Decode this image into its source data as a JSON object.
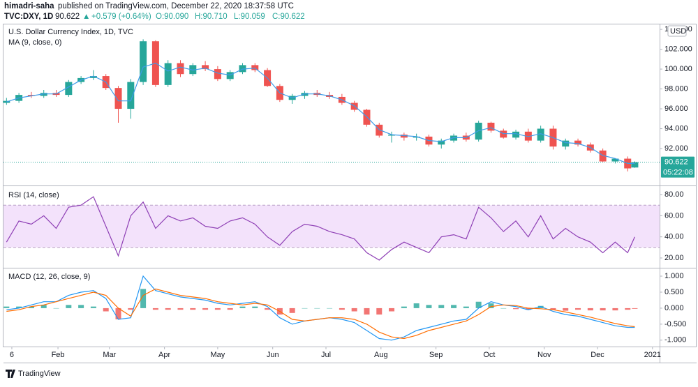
{
  "header": {
    "author": "himadri-saha",
    "published": "published on TradingView.com, December 22, 2020 18:37:58 UTC",
    "symbol": "TVC:DXY, 1D",
    "price": "90.622",
    "change": "+0.579 (+0.64%)",
    "ohlc": [
      "O:90.090",
      "H:90.710",
      "L:90.059",
      "C:90.622"
    ]
  },
  "footer": {
    "brand": "TradingView"
  },
  "chart_data": [
    {
      "type": "candlestick",
      "title": "U.S. Dollar Currency Index, 1D, TVC",
      "currency": "USD",
      "x": [
        2,
        9,
        16,
        23,
        30,
        37,
        44,
        51,
        58,
        65,
        72,
        79,
        86,
        93,
        100,
        107,
        114,
        121,
        128,
        135,
        142,
        149,
        156,
        163,
        170,
        177,
        184,
        191,
        198,
        205,
        212,
        219,
        226,
        233,
        240,
        247,
        254,
        261,
        268,
        275,
        282,
        289,
        296,
        303,
        310,
        317,
        324,
        331,
        338,
        345,
        352,
        356
      ],
      "open": [
        96.6,
        96.8,
        97.4,
        97.3,
        97.6,
        97.4,
        98.7,
        99.1,
        99.3,
        98.1,
        96.0,
        98.7,
        102.8,
        98.4,
        100.6,
        99.5,
        100.4,
        100.0,
        99.0,
        99.7,
        100.4,
        99.9,
        98.3,
        96.9,
        97.3,
        97.6,
        97.4,
        97.2,
        96.6,
        95.9,
        94.4,
        93.3,
        93.4,
        93.1,
        93.2,
        92.4,
        92.8,
        93.3,
        92.9,
        94.6,
        93.8,
        93.1,
        93.7,
        92.8,
        94.0,
        92.2,
        92.8,
        92.4,
        91.8,
        90.7,
        90.98,
        90.09
      ],
      "high": [
        97.1,
        97.6,
        97.7,
        97.9,
        97.9,
        98.9,
        99.3,
        99.9,
        99.5,
        98.3,
        99.0,
        103.0,
        102.9,
        100.9,
        100.9,
        100.6,
        100.8,
        100.3,
        99.9,
        100.6,
        100.6,
        100.1,
        98.5,
        97.5,
        97.8,
        97.9,
        97.7,
        97.5,
        96.8,
        96.0,
        94.6,
        93.7,
        93.6,
        93.5,
        93.4,
        93.0,
        93.5,
        93.6,
        94.8,
        94.7,
        94.0,
        93.9,
        94.0,
        94.3,
        94.3,
        93.0,
        93.0,
        92.6,
        92.0,
        91.0,
        91.2,
        90.71
      ],
      "low": [
        96.4,
        96.6,
        97.1,
        97.1,
        97.2,
        97.2,
        98.5,
        98.9,
        97.9,
        94.6,
        95.0,
        98.4,
        98.2,
        98.2,
        99.2,
        99.3,
        99.8,
        98.8,
        98.8,
        99.5,
        99.7,
        98.2,
        96.7,
        96.5,
        97.0,
        97.2,
        97.0,
        96.4,
        95.7,
        94.2,
        93.1,
        92.6,
        92.8,
        92.8,
        92.2,
        92.0,
        92.6,
        92.7,
        92.7,
        93.6,
        93.0,
        92.9,
        92.6,
        92.6,
        91.9,
        91.9,
        92.2,
        91.6,
        90.6,
        90.5,
        89.7,
        90.059
      ],
      "close": [
        96.8,
        97.4,
        97.3,
        97.6,
        97.4,
        98.7,
        99.1,
        99.3,
        98.1,
        96.0,
        98.7,
        102.8,
        98.4,
        100.6,
        99.5,
        100.4,
        100.0,
        99.0,
        99.7,
        100.4,
        99.9,
        98.3,
        96.9,
        97.3,
        97.6,
        97.4,
        97.2,
        96.6,
        95.9,
        94.4,
        93.3,
        93.4,
        93.1,
        93.2,
        92.4,
        92.8,
        93.3,
        92.9,
        94.6,
        93.8,
        93.1,
        93.7,
        92.8,
        94.0,
        92.2,
        92.8,
        92.4,
        91.8,
        90.7,
        90.98,
        90.0,
        90.622
      ],
      "up_color": "#26a69a",
      "down_color": "#ef5350",
      "ma": {
        "name": "MA (9, close, 0)",
        "color": "#3d9be9",
        "values": [
          96.7,
          97.1,
          97.3,
          97.5,
          97.5,
          98.2,
          98.9,
          99.3,
          98.7,
          96.8,
          96.8,
          100.2,
          100.6,
          99.8,
          100.2,
          99.9,
          100.1,
          99.6,
          99.4,
          100.0,
          100.1,
          99.1,
          97.6,
          97.1,
          97.5,
          97.5,
          97.3,
          96.9,
          96.3,
          95.2,
          93.9,
          93.4,
          93.3,
          93.2,
          92.8,
          92.7,
          93.1,
          93.1,
          93.8,
          94.1,
          93.5,
          93.5,
          93.2,
          93.5,
          93.1,
          92.6,
          92.5,
          92.1,
          91.3,
          91.0,
          90.5,
          90.5
        ]
      },
      "last_price": 90.622,
      "countdown": "05:22:08",
      "xlim": [
        0.3,
        370
      ],
      "ylim": [
        88.35,
        104.5
      ],
      "yticks": [
        {
          "value": 92,
          "label": "92.000"
        },
        {
          "value": 94,
          "label": "94.000"
        },
        {
          "value": 96,
          "label": "96.000"
        },
        {
          "value": 98,
          "label": "98.000"
        },
        {
          "value": 100,
          "label": "100.000"
        },
        {
          "value": 102,
          "label": "102.000"
        },
        {
          "value": 104,
          "label": "104.000"
        }
      ]
    },
    {
      "type": "line",
      "title": "RSI (14, close)",
      "x": [
        2,
        9,
        16,
        23,
        30,
        37,
        44,
        51,
        58,
        65,
        72,
        79,
        86,
        93,
        100,
        107,
        114,
        121,
        128,
        135,
        142,
        149,
        156,
        163,
        170,
        177,
        184,
        191,
        198,
        205,
        212,
        219,
        226,
        233,
        240,
        247,
        254,
        261,
        268,
        275,
        282,
        289,
        296,
        303,
        310,
        317,
        324,
        331,
        338,
        345,
        352,
        356
      ],
      "series": [
        {
          "color": "#8e3fb5",
          "values": [
            35,
            55,
            52,
            60,
            48,
            68,
            70,
            78,
            50,
            22,
            60,
            73,
            48,
            60,
            55,
            58,
            50,
            48,
            55,
            58,
            52,
            40,
            32,
            45,
            52,
            50,
            45,
            42,
            38,
            25,
            18,
            28,
            35,
            30,
            25,
            40,
            42,
            38,
            68,
            58,
            45,
            55,
            40,
            60,
            38,
            48,
            40,
            35,
            25,
            35,
            25,
            40
          ]
        }
      ],
      "band": [
        30,
        70
      ],
      "band_color": "#f3e2fb",
      "xlim": [
        0.3,
        370
      ],
      "ylim": [
        11.4,
        87.3
      ],
      "yticks": [
        {
          "value": 20,
          "label": "20.00"
        },
        {
          "value": 40,
          "label": "40.00"
        },
        {
          "value": 60,
          "label": "60.00"
        },
        {
          "value": 80,
          "label": "80.00"
        }
      ]
    },
    {
      "type": "macd",
      "title": "MACD (12, 26, close, 9)",
      "x": [
        2,
        9,
        16,
        23,
        30,
        37,
        44,
        51,
        58,
        65,
        72,
        79,
        86,
        93,
        100,
        107,
        114,
        121,
        128,
        135,
        142,
        149,
        156,
        163,
        170,
        177,
        184,
        191,
        198,
        205,
        212,
        219,
        226,
        233,
        240,
        247,
        254,
        261,
        268,
        275,
        282,
        289,
        296,
        303,
        310,
        317,
        324,
        331,
        338,
        345,
        352,
        356
      ],
      "macd": {
        "color": "#2196f3",
        "values": [
          -0.05,
          0.0,
          0.1,
          0.2,
          0.2,
          0.4,
          0.5,
          0.55,
          0.3,
          -0.35,
          -0.3,
          1.0,
          0.55,
          0.45,
          0.35,
          0.3,
          0.25,
          0.15,
          0.1,
          0.15,
          0.2,
          0.05,
          -0.3,
          -0.5,
          -0.4,
          -0.35,
          -0.3,
          -0.35,
          -0.45,
          -0.7,
          -0.95,
          -1.0,
          -0.9,
          -0.7,
          -0.6,
          -0.5,
          -0.4,
          -0.35,
          0.0,
          0.2,
          0.1,
          0.05,
          -0.05,
          0.05,
          -0.1,
          -0.2,
          -0.25,
          -0.35,
          -0.45,
          -0.55,
          -0.6,
          -0.6
        ]
      },
      "signal": {
        "color": "#ff6d00",
        "values": [
          -0.1,
          -0.05,
          0.05,
          0.1,
          0.2,
          0.3,
          0.4,
          0.5,
          0.4,
          0.0,
          -0.25,
          0.4,
          0.6,
          0.5,
          0.4,
          0.35,
          0.3,
          0.2,
          0.15,
          0.1,
          0.15,
          0.1,
          -0.1,
          -0.35,
          -0.4,
          -0.35,
          -0.3,
          -0.3,
          -0.35,
          -0.5,
          -0.75,
          -0.9,
          -0.95,
          -0.85,
          -0.7,
          -0.6,
          -0.5,
          -0.4,
          -0.2,
          0.05,
          0.1,
          0.08,
          0.0,
          -0.02,
          -0.05,
          -0.12,
          -0.2,
          -0.28,
          -0.38,
          -0.48,
          -0.55,
          -0.58
        ]
      },
      "histogram": {
        "up_color": "#26a69a",
        "down_color": "#ef5350",
        "values": [
          0.05,
          0.05,
          0.05,
          0.1,
          0,
          0.1,
          0.1,
          0.05,
          -0.1,
          -0.35,
          -0.05,
          0.6,
          -0.05,
          -0.05,
          -0.05,
          -0.05,
          -0.05,
          -0.05,
          -0.05,
          0.05,
          0.05,
          -0.05,
          -0.2,
          -0.15,
          0,
          0,
          0,
          -0.05,
          -0.1,
          -0.2,
          -0.2,
          -0.1,
          0.05,
          0.15,
          0.1,
          0.1,
          0.1,
          0.05,
          0.2,
          0.15,
          0,
          -0.03,
          -0.05,
          0.07,
          -0.05,
          -0.08,
          -0.05,
          -0.07,
          -0.07,
          -0.07,
          -0.05,
          -0.02
        ]
      },
      "xlim": [
        0.3,
        370
      ],
      "ylim": [
        -1.2,
        1.24
      ],
      "yticks": [
        {
          "value": -1,
          "label": "-1.000"
        },
        {
          "value": -0.5,
          "label": "-0.500"
        },
        {
          "value": 0,
          "label": "0.000"
        },
        {
          "value": 0.5,
          "label": "0.500"
        },
        {
          "value": 1,
          "label": "1.000"
        }
      ],
      "xticks": [
        {
          "value": 5,
          "label": "6"
        },
        {
          "value": 31,
          "label": "Feb"
        },
        {
          "value": 60,
          "label": "Mar"
        },
        {
          "value": 91,
          "label": "Apr"
        },
        {
          "value": 121,
          "label": "May"
        },
        {
          "value": 152,
          "label": "Jun"
        },
        {
          "value": 182,
          "label": "Jul"
        },
        {
          "value": 213,
          "label": "Aug"
        },
        {
          "value": 244,
          "label": "Sep"
        },
        {
          "value": 274,
          "label": "Oct"
        },
        {
          "value": 305,
          "label": "Nov"
        },
        {
          "value": 335,
          "label": "Dec"
        },
        {
          "value": 366,
          "label": "2021"
        }
      ]
    }
  ]
}
